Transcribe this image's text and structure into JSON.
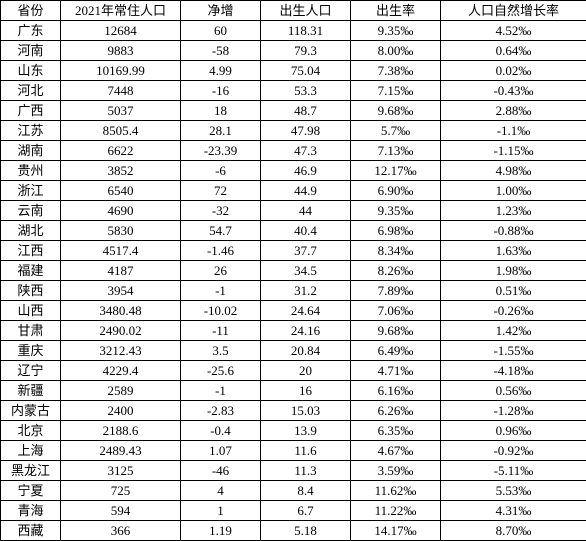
{
  "table": {
    "headers": [
      "省份",
      "2021年常住人口",
      "净增",
      "出生人口",
      "出生率",
      "人口自然增长率"
    ],
    "rows": [
      [
        "广东",
        "12684",
        "60",
        "118.31",
        "9.35‰",
        "4.52‰"
      ],
      [
        "河南",
        "9883",
        "-58",
        "79.3",
        "8.00‰",
        "0.64‰"
      ],
      [
        "山东",
        "10169.99",
        "4.99",
        "75.04",
        "7.38‰",
        "0.02‰"
      ],
      [
        "河北",
        "7448",
        "-16",
        "53.3",
        "7.15‰",
        "-0.43‰"
      ],
      [
        "广西",
        "5037",
        "18",
        "48.7",
        "9.68‰",
        "2.88‰"
      ],
      [
        "江苏",
        "8505.4",
        "28.1",
        "47.98",
        "5.7‰",
        "-1.1‰"
      ],
      [
        "湖南",
        "6622",
        "-23.39",
        "47.3",
        "7.13‰",
        "-1.15‰"
      ],
      [
        "贵州",
        "3852",
        "-6",
        "46.9",
        "12.17‰",
        "4.98‰"
      ],
      [
        "浙江",
        "6540",
        "72",
        "44.9",
        "6.90‰",
        "1.00‰"
      ],
      [
        "云南",
        "4690",
        "-32",
        "44",
        "9.35‰",
        "1.23‰"
      ],
      [
        "湖北",
        "5830",
        "54.7",
        "40.4",
        "6.98‰",
        "-0.88‰"
      ],
      [
        "江西",
        "4517.4",
        "-1.46",
        "37.7",
        "8.34‰",
        "1.63‰"
      ],
      [
        "福建",
        "4187",
        "26",
        "34.5",
        "8.26‰",
        "1.98‰"
      ],
      [
        "陕西",
        "3954",
        "-1",
        "31.2",
        "7.89‰",
        "0.51‰"
      ],
      [
        "山西",
        "3480.48",
        "-10.02",
        "24.64",
        "7.06‰",
        "-0.26‰"
      ],
      [
        "甘肃",
        "2490.02",
        "-11",
        "24.16",
        "9.68‰",
        "1.42‰"
      ],
      [
        "重庆",
        "3212.43",
        "3.5",
        "20.84",
        "6.49‰",
        "-1.55‰"
      ],
      [
        "辽宁",
        "4229.4",
        "-25.6",
        "20",
        "4.71‰",
        "-4.18‰"
      ],
      [
        "新疆",
        "2589",
        "-1",
        "16",
        "6.16‰",
        "0.56‰"
      ],
      [
        "内蒙古",
        "2400",
        "-2.83",
        "15.03",
        "6.26‰",
        "-1.28‰"
      ],
      [
        "北京",
        "2188.6",
        "-0.4",
        "13.9",
        "6.35‰",
        "0.96‰"
      ],
      [
        "上海",
        "2489.43",
        "1.07",
        "11.6",
        "4.67‰",
        "-0.92‰"
      ],
      [
        "黑龙江",
        "3125",
        "-46",
        "11.3",
        "3.59‰",
        "-5.11‰"
      ],
      [
        "宁夏",
        "725",
        "4",
        "8.4",
        "11.62‰",
        "5.53‰"
      ],
      [
        "青海",
        "594",
        "1",
        "6.7",
        "11.22‰",
        "4.31‰"
      ],
      [
        "西藏",
        "366",
        "1.19",
        "5.18",
        "14.17‰",
        "8.70‰"
      ]
    ],
    "column_classes": [
      "col-province",
      "col-pop",
      "col-net",
      "col-birth",
      "col-rate",
      "col-growth"
    ],
    "border_color": "#000000",
    "background_color": "#ffffff",
    "font_size": 13
  }
}
